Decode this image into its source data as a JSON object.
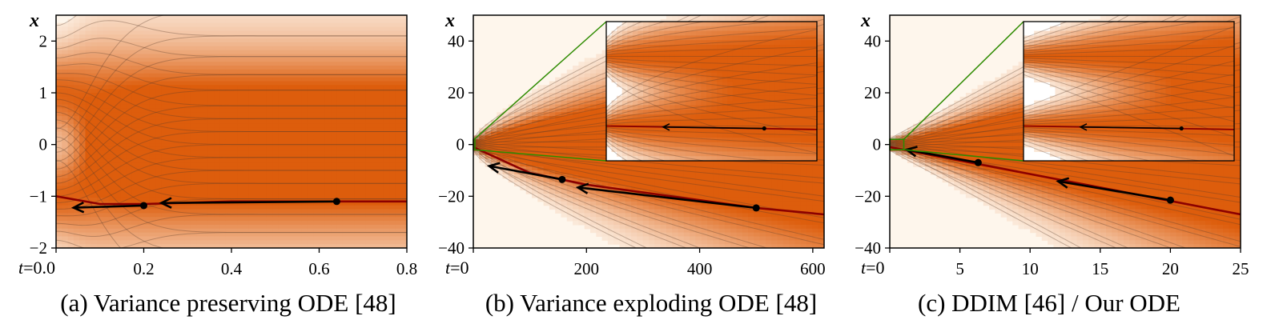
{
  "colors": {
    "density_light": "#fef6ec",
    "density_dark": "#dd5d0c",
    "flow_line": "#5a3b2a",
    "trajectory": "#8b0000",
    "arrow": "#000000",
    "inset_pointer": "#2e8b00"
  },
  "chart_data": [
    {
      "type": "area",
      "caption": "(a) Variance preserving ODE [48]",
      "xlabel": "t",
      "ylabel": "x",
      "x_start_label": "=0.0",
      "xlim": [
        0,
        0.8
      ],
      "ylim": [
        -2,
        2.5
      ],
      "xticks": [
        0.0,
        0.2,
        0.4,
        0.6,
        0.8
      ],
      "xtick_labels": [
        "0.0",
        "0.2",
        "0.4",
        "0.6",
        "0.8"
      ],
      "yticks": [
        -2,
        -1,
        0,
        1,
        2
      ],
      "ytick_labels": [
        "−2",
        "−1",
        "0",
        "1",
        "2"
      ],
      "modes": [
        -1,
        1
      ],
      "highlighted_trajectory": [
        [
          0,
          -1
        ],
        [
          0.1,
          -1.15
        ],
        [
          0.2,
          -1.15
        ],
        [
          0.4,
          -1.1
        ],
        [
          0.64,
          -1.1
        ],
        [
          0.8,
          -1.1
        ]
      ],
      "sample_points": [
        [
          0.64,
          -1.1
        ],
        [
          0.2,
          -1.18
        ]
      ],
      "arrow_segments": [
        [
          [
            0.64,
            -1.1
          ],
          [
            0.24,
            -1.13
          ]
        ],
        [
          [
            0.2,
            -1.18
          ],
          [
            0.04,
            -1.22
          ]
        ]
      ],
      "inset": null
    },
    {
      "type": "area",
      "caption": "(b) Variance exploding ODE [48]",
      "xlabel": "t",
      "ylabel": "x",
      "x_start_label": "=0",
      "xlim": [
        0,
        620
      ],
      "ylim": [
        -40,
        50
      ],
      "xticks": [
        0,
        200,
        400,
        600
      ],
      "xtick_labels": [
        "0",
        "200",
        "400",
        "600"
      ],
      "yticks": [
        -40,
        -20,
        0,
        20,
        40
      ],
      "ytick_labels": [
        "−40",
        "−20",
        "0",
        "20",
        "40"
      ],
      "modes": [
        -1,
        1
      ],
      "highlighted_trajectory": [
        [
          0,
          -1
        ],
        [
          100,
          -11
        ],
        [
          200,
          -15.5
        ],
        [
          300,
          -18.5
        ],
        [
          400,
          -21.5
        ],
        [
          500,
          -24.5
        ],
        [
          620,
          -27
        ]
      ],
      "sample_points": [
        [
          500,
          -24.5
        ],
        [
          157,
          -13.5
        ]
      ],
      "arrow_segments": [
        [
          [
            500,
            -24.5
          ],
          [
            185,
            -16.6
          ]
        ],
        [
          [
            157,
            -13.5
          ],
          [
            28,
            -8.3
          ]
        ]
      ],
      "inset": {
        "region_x": [
          0,
          1.5
        ],
        "region_y": [
          -2,
          2
        ]
      }
    },
    {
      "type": "area",
      "caption": "(c) DDIM [46] / Our ODE",
      "xlabel": "t",
      "ylabel": "x",
      "x_start_label": "=0",
      "xlim": [
        0,
        25
      ],
      "ylim": [
        -40,
        50
      ],
      "xticks": [
        0,
        5,
        10,
        15,
        20,
        25
      ],
      "xtick_labels": [
        "0",
        "5",
        "10",
        "15",
        "20",
        "25"
      ],
      "yticks": [
        -40,
        -20,
        0,
        20,
        40
      ],
      "ytick_labels": [
        "−40",
        "−20",
        "0",
        "20",
        "40"
      ],
      "modes": [
        -1,
        1
      ],
      "highlighted_trajectory": [
        [
          0,
          -1
        ],
        [
          25,
          -27
        ]
      ],
      "sample_points": [
        [
          20,
          -21.5
        ],
        [
          6.3,
          -7
        ]
      ],
      "arrow_segments": [
        [
          [
            20,
            -21.5
          ],
          [
            12,
            -14.2
          ]
        ],
        [
          [
            6.3,
            -7
          ],
          [
            1.2,
            -2
          ]
        ]
      ],
      "inset": {
        "region_x": [
          0,
          1
        ],
        "region_y": [
          -2,
          2
        ]
      }
    }
  ]
}
